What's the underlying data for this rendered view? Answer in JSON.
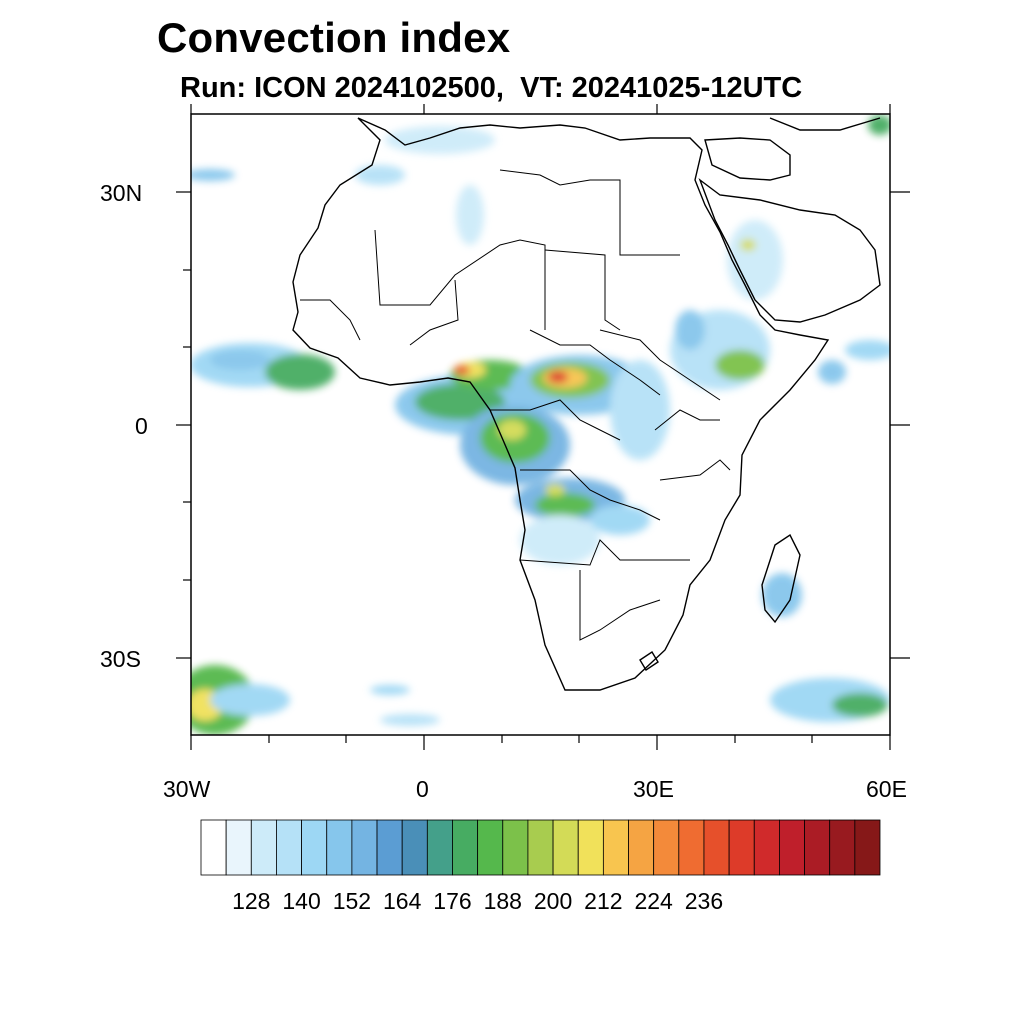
{
  "title": "Convection index",
  "subtitle": "Run: ICON 2024102500,  VT: 20241025-12UTC",
  "axes": {
    "lon_labels": [
      "30W",
      "0",
      "30E",
      "60E"
    ],
    "lat_labels": [
      "30N",
      "0",
      "30S"
    ],
    "lon_range": [
      -30,
      60
    ],
    "lat_range": [
      -40,
      40
    ]
  },
  "colorbar": {
    "labels": [
      "128",
      "140",
      "152",
      "164",
      "176",
      "188",
      "200",
      "212",
      "224",
      "236"
    ],
    "colors": [
      "#ffffff",
      "#e9f5fc",
      "#cdebf9",
      "#b5e1f7",
      "#9dd7f4",
      "#86c6ec",
      "#74b4e2",
      "#5b9dd3",
      "#4a8fb8",
      "#44a08a",
      "#47ac62",
      "#55b84c",
      "#7cc14a",
      "#a8cc4f",
      "#d3db57",
      "#f1e15a",
      "#f8c54f",
      "#f5a443",
      "#f38a3a",
      "#ef6c31",
      "#e6502b",
      "#dd3b29",
      "#d02a2b",
      "#bf1f2b",
      "#ab1c25",
      "#981a1f",
      "#861818"
    ]
  }
}
